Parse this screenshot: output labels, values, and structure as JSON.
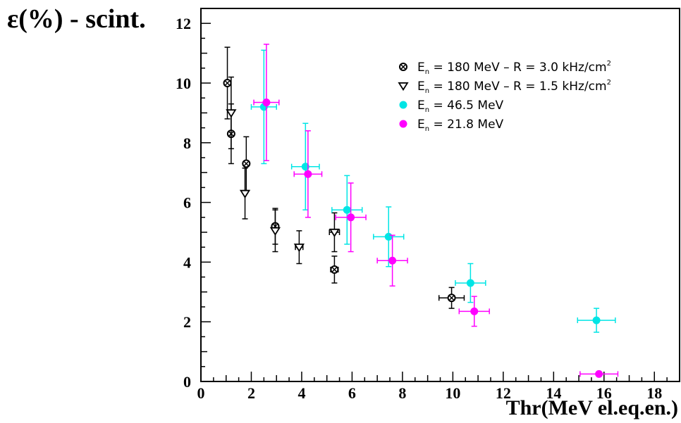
{
  "chart_data": {
    "type": "scatter",
    "title": "",
    "ylabel": "ε(%)  - scint.",
    "xlabel": "Thr(MeV el.eq.en.)",
    "xlim": [
      0,
      19
    ],
    "ylim": [
      0,
      12.5
    ],
    "x_ticks": [
      0,
      2,
      4,
      6,
      8,
      10,
      12,
      14,
      16,
      18
    ],
    "y_ticks": [
      0,
      2,
      4,
      6,
      8,
      10,
      12
    ],
    "grid": false,
    "legend_position": "top-right",
    "series": [
      {
        "name": "En = 180 MeV – R = 3.0 kHz/cm²",
        "marker": "circle-cross",
        "color": "#000000",
        "points": [
          {
            "x": 1.05,
            "y": 10.0,
            "yerr": 1.2,
            "xerr": 0
          },
          {
            "x": 1.2,
            "y": 8.3,
            "yerr": 1.0,
            "xerr": 0
          },
          {
            "x": 1.8,
            "y": 7.3,
            "yerr": 0.9,
            "xerr": 0
          },
          {
            "x": 2.95,
            "y": 5.2,
            "yerr": 0.6,
            "xerr": 0
          },
          {
            "x": 5.3,
            "y": 3.75,
            "yerr": 0.45,
            "xerr": 0.15
          },
          {
            "x": 9.95,
            "y": 2.8,
            "yerr": 0.35,
            "xerr": 0.5
          }
        ]
      },
      {
        "name": "En = 180 MeV – R = 1.5 kHz/cm²",
        "marker": "triangle-down",
        "color": "#000000",
        "points": [
          {
            "x": 1.2,
            "y": 9.0,
            "yerr": 1.2,
            "xerr": 0
          },
          {
            "x": 1.75,
            "y": 6.3,
            "yerr": 0.85,
            "xerr": 0
          },
          {
            "x": 2.95,
            "y": 5.05,
            "yerr": 0.7,
            "xerr": 0
          },
          {
            "x": 3.9,
            "y": 4.5,
            "yerr": 0.55,
            "xerr": 0.15
          },
          {
            "x": 5.3,
            "y": 5.0,
            "yerr": 0.65,
            "xerr": 0.2
          }
        ]
      },
      {
        "name": "En = 46.5 MeV",
        "marker": "dot",
        "color": "#00e5e5",
        "points": [
          {
            "x": 2.5,
            "y": 9.2,
            "yerr": 1.9,
            "xerr": 0.5
          },
          {
            "x": 4.15,
            "y": 7.2,
            "yerr": 1.45,
            "xerr": 0.55
          },
          {
            "x": 5.8,
            "y": 5.75,
            "yerr": 1.15,
            "xerr": 0.6
          },
          {
            "x": 7.45,
            "y": 4.85,
            "yerr": 1.0,
            "xerr": 0.6
          },
          {
            "x": 10.7,
            "y": 3.3,
            "yerr": 0.65,
            "xerr": 0.6
          },
          {
            "x": 15.7,
            "y": 2.05,
            "yerr": 0.4,
            "xerr": 0.75
          }
        ]
      },
      {
        "name": "En = 21.8 MeV",
        "marker": "dot",
        "color": "#ff00ff",
        "points": [
          {
            "x": 2.6,
            "y": 9.35,
            "yerr": 1.95,
            "xerr": 0.5
          },
          {
            "x": 4.25,
            "y": 6.95,
            "yerr": 1.45,
            "xerr": 0.55
          },
          {
            "x": 5.95,
            "y": 5.5,
            "yerr": 1.15,
            "xerr": 0.6
          },
          {
            "x": 7.6,
            "y": 4.05,
            "yerr": 0.85,
            "xerr": 0.6
          },
          {
            "x": 10.85,
            "y": 2.35,
            "yerr": 0.5,
            "xerr": 0.6
          },
          {
            "x": 15.8,
            "y": 0.25,
            "yerr": 0.06,
            "xerr": 0.75
          }
        ]
      }
    ],
    "legend": [
      {
        "label_main": "E",
        "label_sub": "n",
        "label_rest": " = 180 MeV – R = 3.0 kHz/cm",
        "label_sup": "2",
        "marker": "circle-cross",
        "color": "#000000"
      },
      {
        "label_main": "E",
        "label_sub": "n",
        "label_rest": " = 180 MeV – R = 1.5 kHz/cm",
        "label_sup": "2",
        "marker": "triangle-down",
        "color": "#000000"
      },
      {
        "label_main": "E",
        "label_sub": "n",
        "label_rest": " = 46.5 MeV",
        "label_sup": "",
        "marker": "dot",
        "color": "#00e5e5"
      },
      {
        "label_main": "E",
        "label_sub": "n",
        "label_rest": " = 21.8 MeV",
        "label_sup": "",
        "marker": "dot",
        "color": "#ff00ff"
      }
    ]
  }
}
